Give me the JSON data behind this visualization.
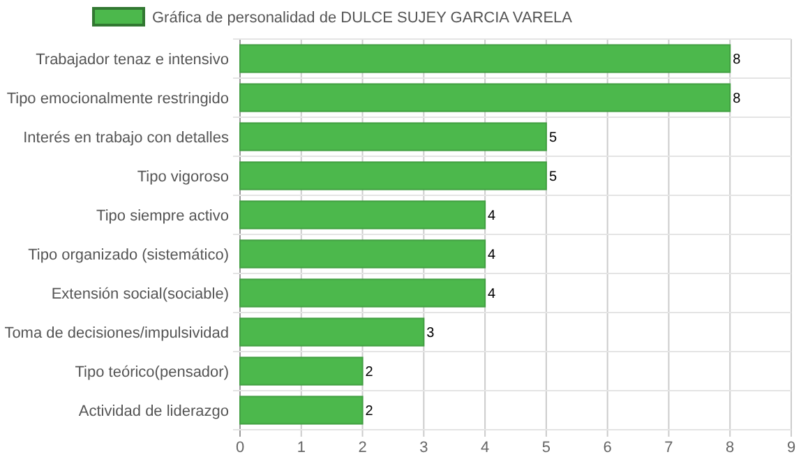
{
  "chart_data": {
    "type": "bar",
    "orientation": "horizontal",
    "categories": [
      "Trabajador tenaz e intensivo",
      "Tipo emocionalmente restringido",
      "Interés en trabajo con detalles",
      "Tipo vigoroso",
      "Tipo siempre activo",
      "Tipo organizado (sistemático)",
      "Extensión social(sociable)",
      "Toma de decisiones/impulsividad",
      "Tipo teórico(pensador)",
      "Actividad de liderazgo"
    ],
    "series": [
      {
        "name": "Gráfica de personalidad de DULCE SUJEY GARCIA VARELA",
        "color": "#4cb84c",
        "values": [
          8,
          8,
          5,
          5,
          4,
          4,
          4,
          3,
          2,
          2
        ]
      }
    ],
    "xlim": [
      0,
      9
    ],
    "xticks": [
      0,
      1,
      2,
      3,
      4,
      5,
      6,
      7,
      8,
      9
    ],
    "grid": true,
    "legend": "top",
    "data_labels": true
  }
}
